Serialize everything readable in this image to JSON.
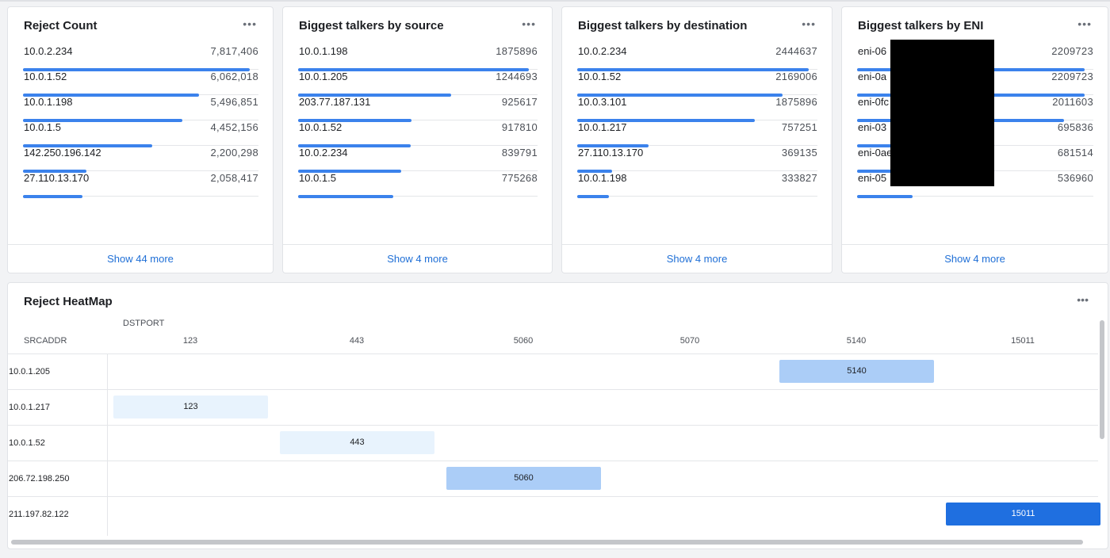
{
  "colors": {
    "bar": "#3b82ec",
    "heat_light": "#e8f3fd",
    "heat_mid": "#abcdf7",
    "heat_dark": "#1f6fe0"
  },
  "cards": [
    {
      "title": "Reject Count",
      "more": "Show 44 more",
      "rows": [
        {
          "label": "10.0.2.234",
          "value": "7,817,406",
          "amount": 7817406
        },
        {
          "label": "10.0.1.52",
          "value": "6,062,018",
          "amount": 6062018
        },
        {
          "label": "10.0.1.198",
          "value": "5,496,851",
          "amount": 5496851
        },
        {
          "label": "10.0.1.5",
          "value": "4,452,156",
          "amount": 4452156
        },
        {
          "label": "142.250.196.142",
          "value": "2,200,298",
          "amount": 2200298
        },
        {
          "label": "27.110.13.170",
          "value": "2,058,417",
          "amount": 2058417
        }
      ]
    },
    {
      "title": "Biggest talkers by source",
      "more": "Show 4 more",
      "rows": [
        {
          "label": "10.0.1.198",
          "value": "1875896",
          "amount": 1875896
        },
        {
          "label": "10.0.1.205",
          "value": "1244693",
          "amount": 1244693
        },
        {
          "label": "203.77.187.131",
          "value": "925617",
          "amount": 925617
        },
        {
          "label": "10.0.1.52",
          "value": "917810",
          "amount": 917810
        },
        {
          "label": "10.0.2.234",
          "value": "839791",
          "amount": 839791
        },
        {
          "label": "10.0.1.5",
          "value": "775268",
          "amount": 775268
        }
      ]
    },
    {
      "title": "Biggest talkers by destination",
      "more": "Show 4 more",
      "rows": [
        {
          "label": "10.0.2.234",
          "value": "2444637",
          "amount": 2444637
        },
        {
          "label": "10.0.1.52",
          "value": "2169006",
          "amount": 2169006
        },
        {
          "label": "10.0.3.101",
          "value": "1875896",
          "amount": 1875896
        },
        {
          "label": "10.0.1.217",
          "value": "757251",
          "amount": 757251
        },
        {
          "label": "27.110.13.170",
          "value": "369135",
          "amount": 369135
        },
        {
          "label": "10.0.1.198",
          "value": "333827",
          "amount": 333827
        }
      ]
    },
    {
      "title": "Biggest talkers by ENI",
      "more": "Show 4 more",
      "rows": [
        {
          "label": "eni-06",
          "value": "2209723",
          "amount": 2209723
        },
        {
          "label": "eni-0a",
          "value": "2209723",
          "amount": 2209723
        },
        {
          "label": "eni-0fc",
          "value": "2011603",
          "amount": 2011603
        },
        {
          "label": "eni-03",
          "value": "695836",
          "amount": 695836
        },
        {
          "label": "eni-0ae",
          "value": "681514",
          "amount": 681514
        },
        {
          "label": "eni-05",
          "value": "536960",
          "amount": 536960
        }
      ]
    }
  ],
  "heatmap": {
    "title": "Reject HeatMap",
    "col_header": "DSTPORT",
    "row_header": "SRCADDR",
    "columns": [
      "123",
      "443",
      "5060",
      "5070",
      "5140",
      "15011"
    ],
    "rows": [
      {
        "src": "10.0.1.205",
        "cell": "5140",
        "col": 4,
        "level": "mid"
      },
      {
        "src": "10.0.1.217",
        "cell": "123",
        "col": 0,
        "level": "light"
      },
      {
        "src": "10.0.1.52",
        "cell": "443",
        "col": 1,
        "level": "light"
      },
      {
        "src": "206.72.198.250",
        "cell": "5060",
        "col": 2,
        "level": "mid"
      },
      {
        "src": "211.197.82.122",
        "cell": "15011",
        "col": 5,
        "level": "dark"
      }
    ]
  }
}
